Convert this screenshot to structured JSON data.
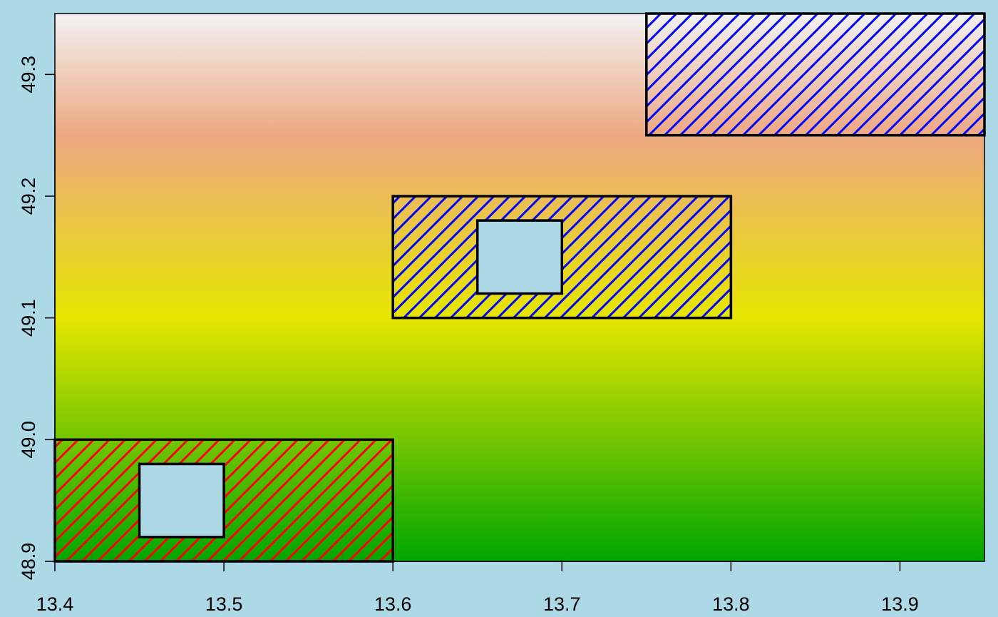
{
  "chart_data": {
    "type": "polygon-map",
    "title": "",
    "xlabel": "",
    "ylabel": "",
    "xlim": [
      13.4,
      13.95
    ],
    "ylim": [
      48.9,
      49.35
    ],
    "x_ticks": [
      "13.4",
      "13.5",
      "13.6",
      "13.7",
      "13.8",
      "13.9"
    ],
    "y_ticks": [
      "48.9",
      "49.0",
      "49.1",
      "49.2",
      "49.3"
    ],
    "background": {
      "type": "vertical-gradient",
      "stops": [
        {
          "y": 48.9,
          "color": "#00a600"
        },
        {
          "y": 49.1,
          "color": "#e6e600"
        },
        {
          "y": 49.25,
          "color": "#eda882"
        },
        {
          "y": 49.35,
          "color": "#f2f2f2"
        }
      ]
    },
    "polygons": [
      {
        "name": "polygon-1",
        "outer": {
          "xmin": 13.4,
          "xmax": 13.6,
          "ymin": 48.9,
          "ymax": 49.0
        },
        "hole": {
          "xmin": 13.45,
          "xmax": 13.5,
          "ymin": 48.92,
          "ymax": 48.98
        },
        "hatch_color": "#ff0000",
        "fill": "transparent"
      },
      {
        "name": "polygon-2",
        "outer": {
          "xmin": 13.6,
          "xmax": 13.8,
          "ymin": 49.1,
          "ymax": 49.2
        },
        "hole": {
          "xmin": 13.65,
          "xmax": 13.7,
          "ymin": 49.12,
          "ymax": 49.18
        },
        "hatch_color": "#0000ff",
        "fill": "transparent"
      },
      {
        "name": "polygon-3",
        "outer": {
          "xmin": 13.75,
          "xmax": 13.95,
          "ymin": 49.25,
          "ymax": 49.35
        },
        "hole": null,
        "hatch_color": "#0000ff",
        "fill": "transparent"
      }
    ],
    "hole_fill": "#add8e6",
    "page_background": "#add8e6",
    "grid": false,
    "legend": "none"
  }
}
